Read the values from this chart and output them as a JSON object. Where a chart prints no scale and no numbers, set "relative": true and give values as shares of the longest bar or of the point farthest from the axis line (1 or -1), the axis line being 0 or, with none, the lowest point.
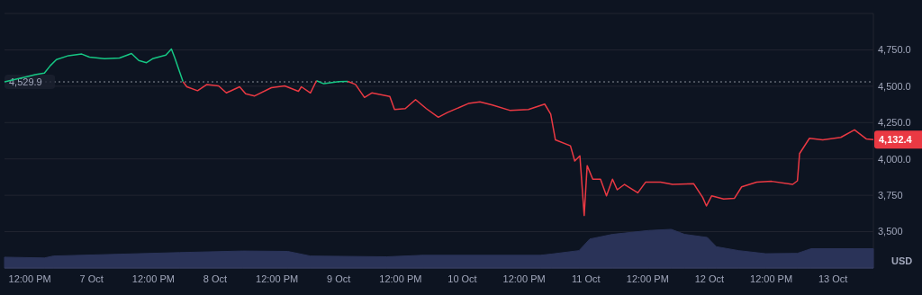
{
  "chart_data": [
    {
      "type": "line",
      "x": [
        "--10-06T07:05",
        "--10-06T11:50",
        "--10-06T13:00",
        "--10-06T14:50",
        "--10-06T16:00",
        "--10-06T17:10",
        "--10-06T19:30",
        "--10-06T22:05",
        "--10-06T23:35",
        "--10-07T02:30",
        "--10-07T05:25",
        "--10-07T07:45",
        "--10-07T09:10",
        "--10-07T10:40",
        "--10-07T11:50",
        "--10-07T14:25",
        "--10-07T15:30",
        "--10-07T16:10",
        "--10-07T17:05",
        "--10-07T17:45",
        "--10-07T18:30",
        "--10-07T20:35",
        "--10-07T22:20",
        "--10-08T00:40",
        "--10-08T02:10",
        "--10-08T04:45",
        "--10-08T05:55",
        "--10-08T07:40",
        "--10-08T10:55",
        "--10-08T13:30",
        "--10-08T16:10",
        "--10-08T16:45",
        "--10-08T18:30",
        "--10-08T19:40",
        "--10-08T21:05",
        "--10-09T00:00",
        "--10-09T01:45",
        "--10-09T03:15",
        "--10-09T05:00",
        "--10-09T06:25",
        "--10-09T09:55",
        "--10-09T10:50",
        "--10-09T12:55",
        "--10-09T14:55",
        "--10-09T17:00",
        "--10-09T19:20",
        "--10-09T21:05",
        "--10-10T01:10",
        "--10-10T03:25",
        "--10-10T05:50",
        "--10-10T09:20",
        "--10-10T12:50",
        "--10-10T16:00",
        "--10-10T17:10",
        "--10-10T18:05",
        "--10-10T21:00",
        "--10-10T21:50",
        "--10-10T22:50",
        "--10-10T23:40",
        "--10-11T00:15",
        "--10-11T01:20",
        "--10-11T02:50",
        "--10-11T04:00",
        "--10-11T05:10",
        "--10-11T06:05",
        "--10-11T07:30",
        "--10-11T10:05",
        "--10-11T11:35",
        "--10-11T14:30",
        "--10-11T16:50",
        "--10-11T20:55",
        "--10-11T22:40",
        "--10-11T23:25",
        "--10-12T00:25",
        "--10-12T02:45",
        "--10-12T04:50",
        "--10-12T06:15",
        "--10-12T09:10",
        "--10-12T12:05",
        "--10-12T16:10",
        "--10-12T17:05",
        "--10-12T17:30",
        "--10-12T19:25",
        "--10-12T22:00",
        "--10-13T01:30",
        "--10-13T04:10",
        "--10-13T06:30",
        "--10-13T07:50"
      ],
      "series": [
        {
          "color": "#16c784",
          "values": [
            4530,
            4569,
            4579,
            4590,
            4642,
            4683,
            4710,
            4721,
            4700,
            4689,
            4694,
            4725,
            4677,
            4662,
            4689,
            4714,
            4756,
            4694,
            4600,
            4531,
            null,
            null,
            null,
            null,
            null,
            null,
            null,
            null,
            null,
            null,
            null,
            null,
            null,
            4538,
            4517,
            4531,
            4533,
            null,
            null,
            null,
            null,
            null,
            null,
            null,
            null,
            null,
            null,
            null,
            null,
            null,
            null,
            null,
            null,
            null,
            null,
            null,
            null,
            null,
            null,
            null,
            null,
            null,
            null,
            null,
            null,
            null,
            null,
            null,
            null,
            null,
            null,
            null,
            null,
            null,
            null,
            null,
            null,
            null,
            null,
            null,
            null,
            null,
            null,
            null,
            null,
            null,
            null,
            null
          ]
        },
        {
          "color": "#ea3943",
          "values": [
            null,
            null,
            null,
            null,
            null,
            null,
            null,
            null,
            null,
            null,
            null,
            null,
            null,
            null,
            null,
            null,
            null,
            null,
            null,
            4531,
            4496,
            4469,
            4511,
            4502,
            4454,
            4496,
            4448,
            4433,
            4490,
            4502,
            4465,
            4496,
            4454,
            4538,
            null,
            null,
            4533,
            4512,
            4423,
            4454,
            4429,
            4340,
            4346,
            4408,
            4346,
            4287,
            4319,
            4381,
            4392,
            4371,
            4333,
            4340,
            4377,
            4308,
            4131,
            4090,
            3986,
            4021,
            3611,
            3954,
            3861,
            3861,
            3746,
            3861,
            3788,
            3825,
            3767,
            3840,
            3840,
            3825,
            3830,
            3736,
            3677,
            3746,
            3725,
            3729,
            3808,
            3840,
            3846,
            3825,
            3850,
            4037,
            4142,
            4131,
            4148,
            4200,
            4137,
            4132.4
          ]
        }
      ],
      "xlim": [
        "--10-06T07:05",
        "--10-13T07:50"
      ],
      "xticks": [
        {
          "value": "--10-06T12:00",
          "label": "12:00 PM"
        },
        {
          "value": "--10-07T00:00",
          "label": "7 Oct"
        },
        {
          "value": "--10-07T12:00",
          "label": "12:00 PM"
        },
        {
          "value": "--10-08T00:00",
          "label": "8 Oct"
        },
        {
          "value": "--10-08T12:00",
          "label": "12:00 PM"
        },
        {
          "value": "--10-09T00:00",
          "label": "9 Oct"
        },
        {
          "value": "--10-09T12:00",
          "label": "12:00 PM"
        },
        {
          "value": "--10-10T00:00",
          "label": "10 Oct"
        },
        {
          "value": "--10-10T12:00",
          "label": "12:00 PM"
        },
        {
          "value": "--10-11T00:00",
          "label": "11 Oct"
        },
        {
          "value": "--10-11T12:00",
          "label": "12:00 PM"
        },
        {
          "value": "--10-12T00:00",
          "label": "12 Oct"
        },
        {
          "value": "--10-12T12:00",
          "label": "12:00 PM"
        },
        {
          "value": "--10-13T00:00",
          "label": "13 Oct"
        }
      ],
      "ylim": [
        3250,
        5000
      ],
      "yticks": [
        {
          "value": 3500,
          "label": "3,500"
        },
        {
          "value": 3750,
          "label": "3,750"
        },
        {
          "value": 4000,
          "label": "4,000.0"
        },
        {
          "value": 4250,
          "label": "4,250.0"
        },
        {
          "value": 4500,
          "label": "4,500.0"
        },
        {
          "value": 4750,
          "label": "4,750.0"
        }
      ],
      "ylabel": "USD",
      "grid": "y",
      "ref_lines": [
        {
          "axis": "y",
          "value": 4529.9,
          "label": "4,529.9",
          "color": "#8a8f99",
          "line_style": "dotted"
        }
      ],
      "annotations": [
        {
          "text": "4,132.4",
          "x": "--10-13T07:50",
          "y": 4132.4
        }
      ]
    },
    {
      "type": "area",
      "relative": true,
      "tick_labels": false,
      "x": [
        "--10-06T07:05",
        "--10-06T14:50",
        "--10-06T16:35",
        "--10-07T17:05",
        "--10-08T05:20",
        "--10-08T14:05",
        "--10-08T18:30",
        "--10-09T09:20",
        "--10-09T16:25",
        "--10-10T15:10",
        "--10-10T17:15",
        "--10-10T22:40",
        "--10-11T00:45",
        "--10-11T05:10",
        "--10-11T12:10",
        "--10-11T16:35",
        "--10-11T19:10",
        "--10-11T23:35",
        "--10-12T01:20",
        "--10-12T05:40",
        "--10-12T10:55",
        "--10-12T17:05",
        "--10-12T19:45",
        "--10-13T07:50"
      ],
      "xlim": [
        "--10-06T07:05",
        "--10-13T07:50"
      ],
      "series": [
        {
          "color": "#2a3358",
          "values": [
            0.28,
            0.26,
            0.31,
            0.4,
            0.44,
            0.43,
            0.31,
            0.29,
            0.33,
            0.33,
            0.36,
            0.45,
            0.75,
            0.87,
            0.97,
            1,
            0.87,
            0.79,
            0.55,
            0.45,
            0.37,
            0.38,
            0.5,
            0.5
          ]
        }
      ]
    }
  ]
}
